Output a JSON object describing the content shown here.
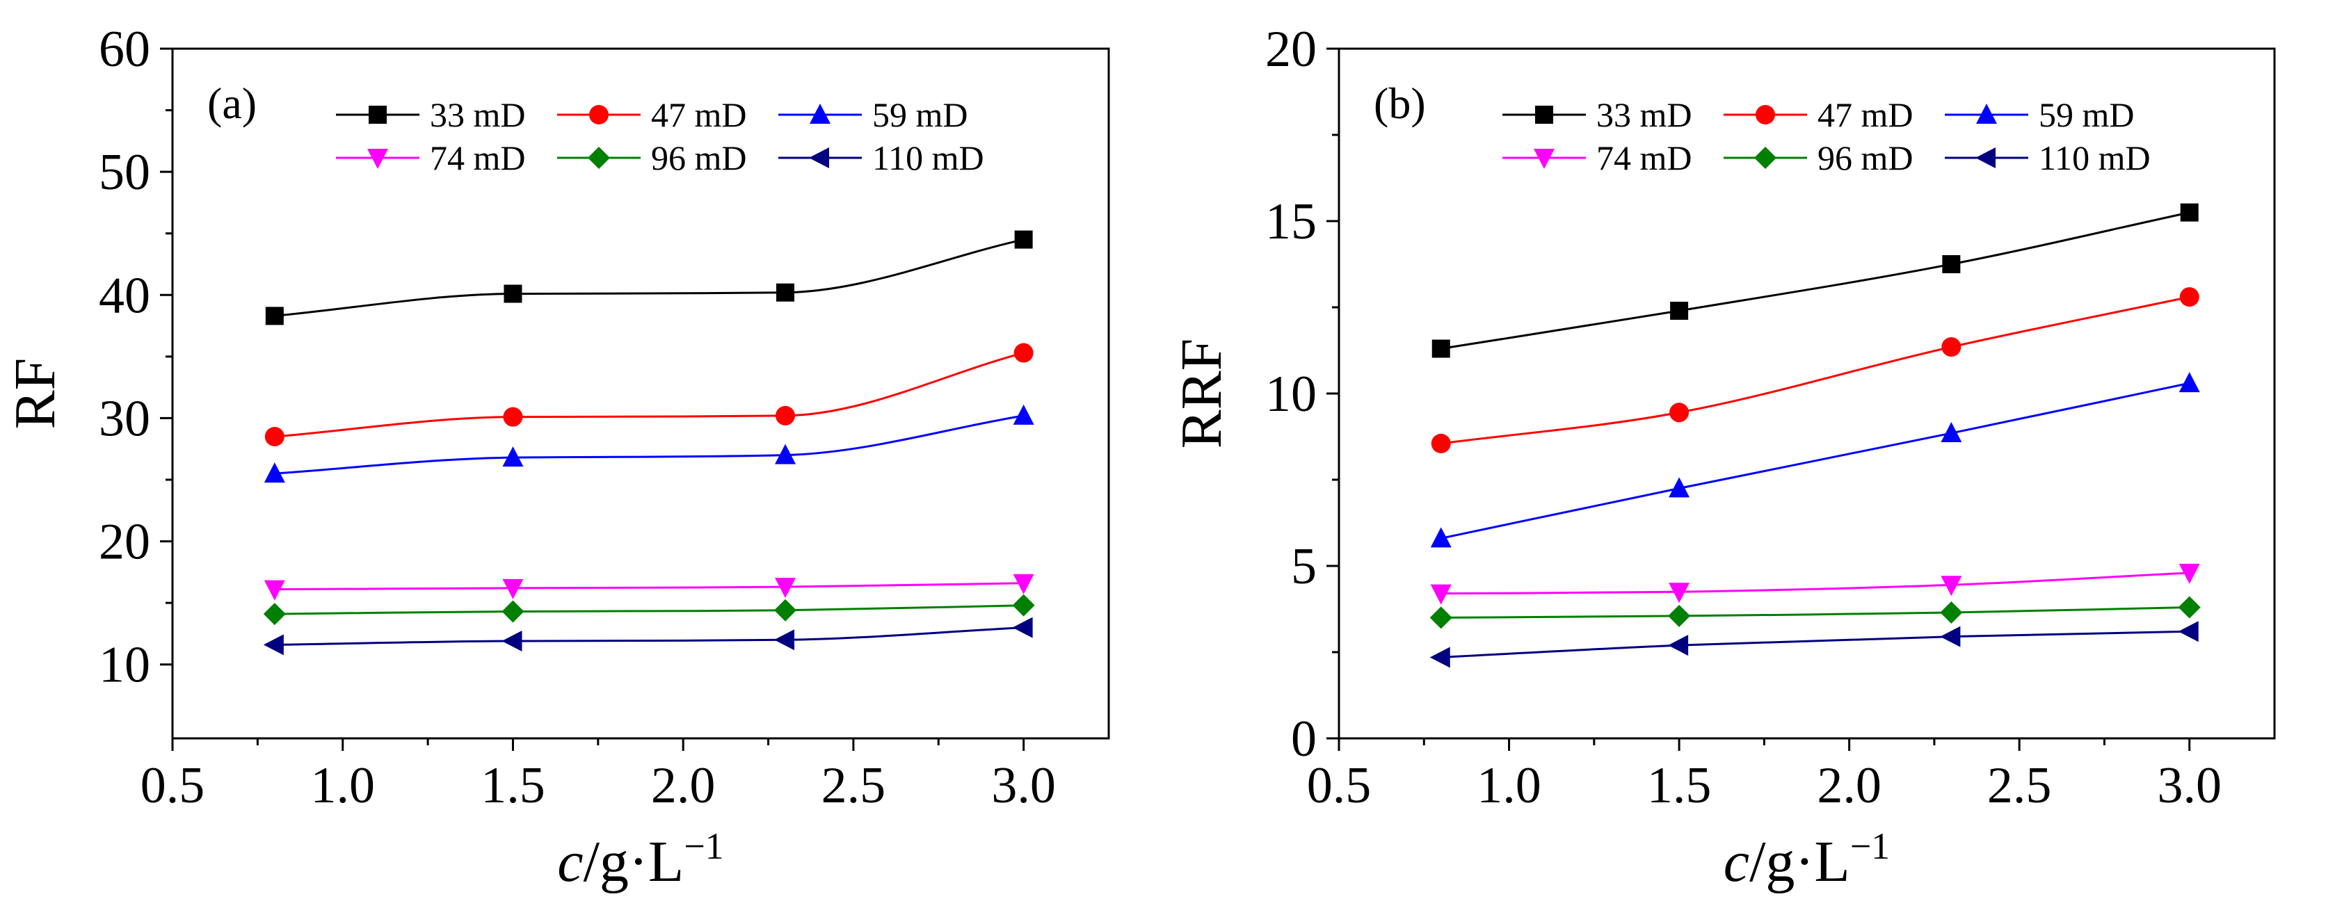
{
  "chart_data": [
    {
      "type": "line",
      "panel_label": "(a)",
      "ylabel": "RF",
      "xlabel": {
        "italic": "c",
        "unit": "/g·L",
        "exponent": "−1"
      },
      "xlim": [
        0.5,
        3.25
      ],
      "ylim": [
        4,
        60
      ],
      "xticks": [
        "0.5",
        "1.0",
        "1.5",
        "2.0",
        "2.5",
        "3.0"
      ],
      "yticks": [
        "10",
        "20",
        "30",
        "40",
        "50",
        "60"
      ],
      "x": [
        0.8,
        1.5,
        2.3,
        3.0
      ],
      "series": [
        {
          "name": "33 mD",
          "marker": "square",
          "color": "#000000",
          "values": [
            38.3,
            40.1,
            40.2,
            44.5
          ]
        },
        {
          "name": "47 mD",
          "marker": "circle",
          "color": "#ff0000",
          "values": [
            28.5,
            30.1,
            30.2,
            35.3
          ]
        },
        {
          "name": "59 mD",
          "marker": "triangle-up",
          "color": "#0000ff",
          "values": [
            25.5,
            26.8,
            27.0,
            30.2
          ]
        },
        {
          "name": "74 mD",
          "marker": "triangle-down",
          "color": "#ff00ff",
          "values": [
            16.1,
            16.2,
            16.3,
            16.6
          ]
        },
        {
          "name": "96 mD",
          "marker": "diamond",
          "color": "#008000",
          "values": [
            14.1,
            14.3,
            14.4,
            14.8
          ]
        },
        {
          "name": "110 mD",
          "marker": "triangle-left",
          "color": "#000080",
          "values": [
            11.6,
            11.9,
            12.0,
            13.0
          ]
        }
      ],
      "legend": "top, two rows of three"
    },
    {
      "type": "line",
      "panel_label": "(b)",
      "ylabel": "RRF",
      "xlabel": {
        "italic": "c",
        "unit": "/g·L",
        "exponent": "−1"
      },
      "xlim": [
        0.5,
        3.25
      ],
      "ylim": [
        0,
        20
      ],
      "xticks": [
        "0.5",
        "1.0",
        "1.5",
        "2.0",
        "2.5",
        "3.0"
      ],
      "yticks": [
        "0",
        "5",
        "10",
        "15",
        "20"
      ],
      "x": [
        0.8,
        1.5,
        2.3,
        3.0
      ],
      "series": [
        {
          "name": "33 mD",
          "marker": "square",
          "color": "#000000",
          "values": [
            11.3,
            12.4,
            13.75,
            15.25
          ]
        },
        {
          "name": "47 mD",
          "marker": "circle",
          "color": "#ff0000",
          "values": [
            8.55,
            9.45,
            11.35,
            12.8
          ]
        },
        {
          "name": "59 mD",
          "marker": "triangle-up",
          "color": "#0000ff",
          "values": [
            5.8,
            7.25,
            8.85,
            10.3
          ]
        },
        {
          "name": "74 mD",
          "marker": "triangle-down",
          "color": "#ff00ff",
          "values": [
            4.2,
            4.25,
            4.45,
            4.8
          ]
        },
        {
          "name": "96 mD",
          "marker": "diamond",
          "color": "#008000",
          "values": [
            3.5,
            3.55,
            3.65,
            3.8
          ]
        },
        {
          "name": "110 mD",
          "marker": "triangle-left",
          "color": "#000080",
          "values": [
            2.35,
            2.7,
            2.95,
            3.1
          ]
        }
      ],
      "legend": "top, two rows of three"
    }
  ]
}
